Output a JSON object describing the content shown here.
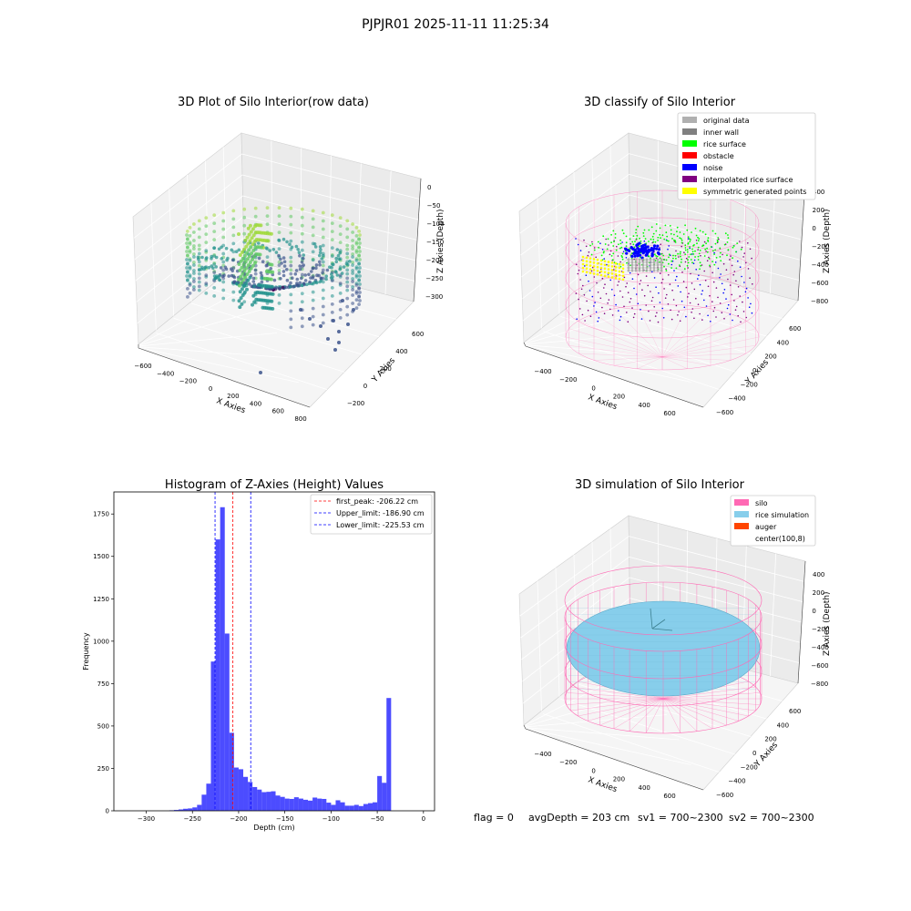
{
  "suptitle": "PJPJR01 2025-11-11 11:25:34",
  "footer": {
    "flag": "flag = 0",
    "avg_depth": "avgDepth = 203 cm",
    "sv1": "sv1 = 700~2300",
    "sv2": "sv2 = 700~2300"
  },
  "colors": {
    "silo": "#ff69b4",
    "rice": "#87ceeb",
    "auger": "#ff4500",
    "hist_bar": "#0000ff",
    "peak_line": "#ff0000",
    "limit_line": "#0000ff"
  },
  "chart_data": [
    {
      "type": "scatter3d",
      "title": "3D Plot of Silo Interior(row data)",
      "xlabel": "X Axies",
      "ylabel": "Y Axies",
      "zlabel": "Z Axies (Depth)",
      "x_ticks": [
        "−600",
        "−400",
        "−200",
        "0",
        "200",
        "400",
        "600",
        "800"
      ],
      "y_ticks": [
        "−200",
        "0",
        "200",
        "400",
        "600"
      ],
      "z_ticks": [
        "0",
        "−50",
        "−100",
        "−150",
        "−200",
        "−250",
        "−300"
      ],
      "colormap": "viridis"
    },
    {
      "type": "scatter3d",
      "title": "3D classify of Silo Interior",
      "xlabel": "X Axies",
      "ylabel": "Y Axies",
      "zlabel": "Z Axies (Depth)",
      "x_ticks": [
        "−400",
        "−200",
        "0",
        "200",
        "400",
        "600"
      ],
      "y_ticks": [
        "−600",
        "−400",
        "−200",
        "0",
        "200",
        "400",
        "600"
      ],
      "z_ticks": [
        "400",
        "200",
        "0",
        "−200",
        "−400",
        "−600",
        "−800"
      ],
      "legend": [
        {
          "label": "original data",
          "color": "#b0b0b0"
        },
        {
          "label": "inner wall",
          "color": "#808080"
        },
        {
          "label": "rice surface",
          "color": "#00ff00"
        },
        {
          "label": "obstacle",
          "color": "#ff0000"
        },
        {
          "label": "noise",
          "color": "#0000ff"
        },
        {
          "label": "interpolated rice surface",
          "color": "#800080"
        },
        {
          "label": "symmetric generated points",
          "color": "#ffff00"
        }
      ],
      "legend_position": "top-right"
    },
    {
      "type": "bar",
      "title": "Histogram of Z-Axies (Height) Values",
      "xlabel": "Depth (cm)",
      "ylabel": "Frequency",
      "xlim": [
        -335,
        12
      ],
      "ylim": [
        0,
        1880
      ],
      "x_ticks": [
        -300,
        -250,
        -200,
        -150,
        -100,
        -50,
        0
      ],
      "y_ticks": [
        0,
        250,
        500,
        750,
        1000,
        1250,
        1500,
        1750
      ],
      "bin_width": 5,
      "bin_starts": [
        -275,
        -270,
        -265,
        -260,
        -255,
        -250,
        -245,
        -240,
        -235,
        -230,
        -225,
        -220,
        -215,
        -210,
        -205,
        -200,
        -195,
        -190,
        -185,
        -180,
        -175,
        -170,
        -165,
        -160,
        -155,
        -150,
        -145,
        -140,
        -135,
        -130,
        -125,
        -120,
        -115,
        -110,
        -105,
        -100,
        -95,
        -90,
        -85,
        -80,
        -75,
        -70,
        -65,
        -60,
        -55,
        -50,
        -45,
        -40,
        -35,
        -30,
        -25,
        -20,
        -15,
        -10,
        -5
      ],
      "values": [
        3,
        5,
        8,
        12,
        14,
        20,
        35,
        95,
        160,
        880,
        1600,
        1790,
        1045,
        460,
        255,
        245,
        200,
        170,
        140,
        125,
        110,
        112,
        115,
        90,
        82,
        72,
        70,
        80,
        72,
        65,
        60,
        78,
        72,
        70,
        48,
        35,
        62,
        50,
        30,
        30,
        35,
        28,
        40,
        45,
        50,
        205,
        165,
        665,
        0,
        0,
        0,
        0,
        0,
        0,
        0
      ],
      "lines": [
        {
          "label": "first_peak: -206.22 cm",
          "x": -206.22,
          "color": "#ff0000"
        },
        {
          "label": "Upper_limit: -186.90 cm",
          "x": -186.9,
          "color": "#0000ff"
        },
        {
          "label": "Lower_limit: -225.53 cm",
          "x": -225.53,
          "color": "#0000ff"
        }
      ],
      "legend_position": "top-right"
    },
    {
      "type": "surface3d",
      "title": "3D simulation of Silo Interior",
      "xlabel": "X Axies",
      "ylabel": "Y Axies",
      "zlabel": "Z Axies (Depth)",
      "x_ticks": [
        "−400",
        "−200",
        "0",
        "200",
        "400",
        "600"
      ],
      "y_ticks": [
        "−600",
        "−400",
        "−200",
        "0",
        "200",
        "400",
        "600"
      ],
      "z_ticks": [
        "400",
        "200",
        "0",
        "−200",
        "−400",
        "−600",
        "−800"
      ],
      "legend": [
        {
          "label": "silo",
          "color": "#ff69b4"
        },
        {
          "label": "rice simulation",
          "color": "#87ceeb"
        },
        {
          "label": "auger",
          "color": "#ff4500"
        },
        {
          "label": "center(100,8)",
          "color": "#ffffff"
        }
      ],
      "legend_position": "top-right"
    }
  ]
}
